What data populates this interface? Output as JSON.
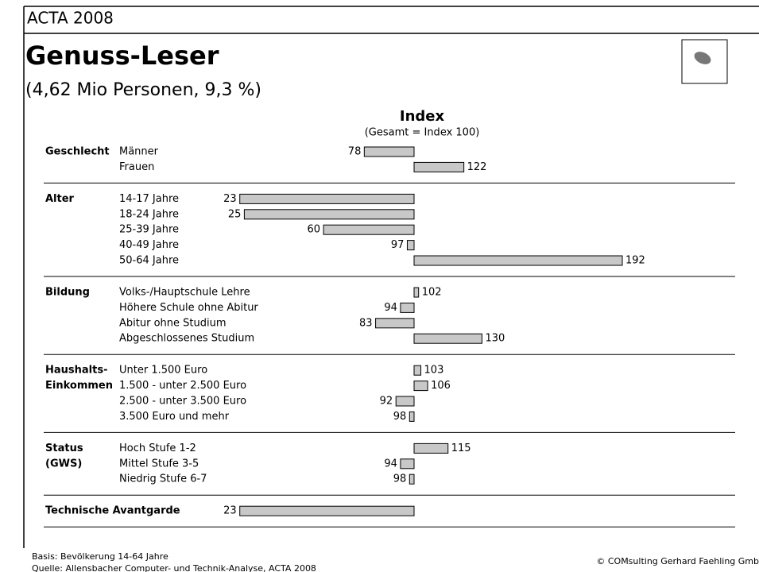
{
  "header": "ACTA 2008",
  "chart_data": {
    "type": "bar",
    "title": "Genuss-Leser",
    "subtitle": "(4,62 Mio Personen, 9,3 %)",
    "axis_title": "Index",
    "axis_subtitle": "(Gesamt = Index 100)",
    "baseline": 100,
    "color": "#c8c8c8",
    "groups": [
      {
        "name": [
          "Geschlecht"
        ],
        "categories": [
          "Männer",
          "Frauen"
        ],
        "values": [
          78,
          122
        ]
      },
      {
        "name": [
          "Alter"
        ],
        "categories": [
          "14-17 Jahre",
          "18-24 Jahre",
          "25-39 Jahre",
          "40-49 Jahre",
          "50-64 Jahre"
        ],
        "values": [
          23,
          25,
          60,
          97,
          192
        ]
      },
      {
        "name": [
          "Bildung"
        ],
        "categories": [
          "Volks-/Hauptschule Lehre",
          "Höhere Schule ohne Abitur",
          "Abitur ohne Studium",
          "Abgeschlossenes Studium"
        ],
        "values": [
          102,
          94,
          83,
          130
        ]
      },
      {
        "name": [
          "Haushalts-",
          "Einkommen"
        ],
        "categories": [
          "Unter 1.500 Euro",
          "1.500 - unter 2.500 Euro",
          "2.500 - unter 3.500 Euro",
          "3.500 Euro und mehr"
        ],
        "values": [
          103,
          106,
          92,
          98
        ]
      },
      {
        "name": [
          "Status",
          "(GWS)"
        ],
        "categories": [
          "Hoch Stufe 1-2",
          "Mittel Stufe 3-5",
          "Niedrig Stufe 6-7"
        ],
        "values": [
          115,
          94,
          98
        ]
      },
      {
        "name": [
          "Technische Avantgarde"
        ],
        "values": [
          23
        ]
      }
    ]
  },
  "footer": {
    "basis": "Basis: Bevölkerung 14-64 Jahre",
    "source": "Quelle: Allensbacher Computer- und Technik-Analyse, ACTA 2008",
    "copyright": "© COMsulting Gerhard Faehling Gmb"
  }
}
